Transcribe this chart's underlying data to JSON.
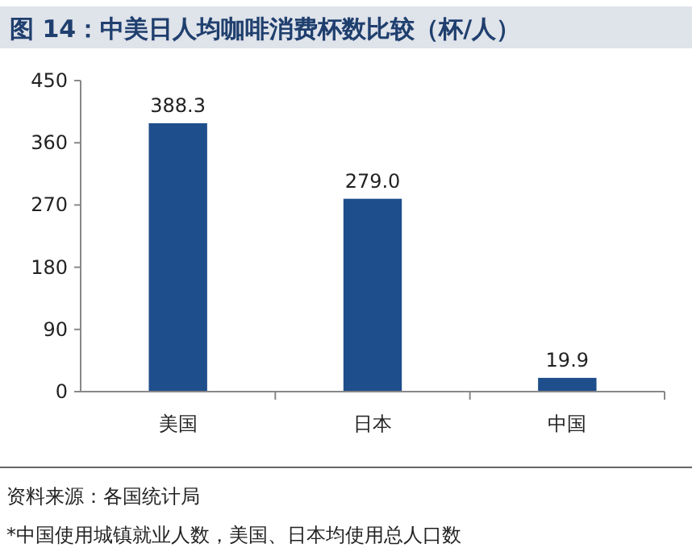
{
  "chart_data": {
    "type": "bar",
    "title": "图 14：中美日人均咖啡消费杯数比较（杯/人）",
    "categories": [
      "美国",
      "日本",
      "中国"
    ],
    "values": [
      388.3,
      279.0,
      19.9
    ],
    "value_labels": [
      "388.3",
      "279.0",
      "19.9"
    ],
    "color": "#1f4e8c",
    "ylim": [
      0,
      450
    ],
    "yticks": [
      0,
      90,
      180,
      270,
      360,
      450
    ],
    "grid": false,
    "annotations": [
      "资料来源：各国统计局",
      "*中国使用城镇就业人数，美国、日本均使用总人口数"
    ]
  }
}
